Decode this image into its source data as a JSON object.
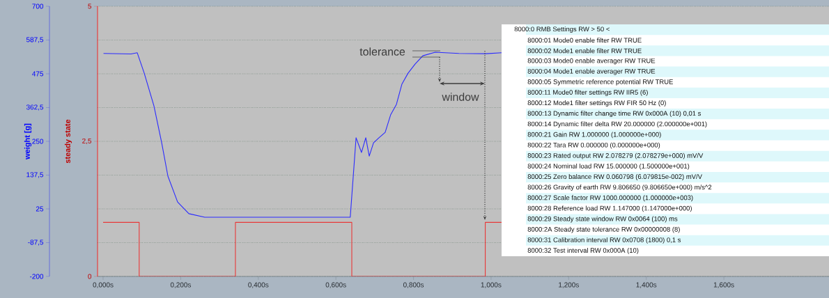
{
  "chart_data": {
    "type": "line",
    "ylabel": "weight [g]",
    "y2label": "steady state",
    "grid": "y",
    "xlim": [
      -0.0144,
      1.871
    ],
    "xticks": [
      {
        "value": 0,
        "label": "0,000s"
      },
      {
        "value": 0.2,
        "label": "0,200s"
      },
      {
        "value": 0.4,
        "label": "0,400s"
      },
      {
        "value": 0.6,
        "label": "0,600s"
      },
      {
        "value": 0.8,
        "label": "0,800s"
      },
      {
        "value": 1.0,
        "label": "1,000s"
      },
      {
        "value": 1.2,
        "label": "1,200s"
      },
      {
        "value": 1.4,
        "label": "1,400s"
      },
      {
        "value": 1.6,
        "label": "1,600s"
      }
    ],
    "ylim": [
      -200,
      700
    ],
    "yticks": [
      -200,
      {
        "value": -87.5,
        "label": "-87,5"
      },
      25,
      {
        "value": 137.5,
        "label": "137,5"
      },
      250,
      {
        "value": 362.5,
        "label": "362,5"
      },
      475,
      {
        "value": 587.5,
        "label": "587,5"
      },
      700
    ],
    "y2lim": [
      0,
      5
    ],
    "y2ticks": [
      0,
      {
        "value": 2.5,
        "label": "2,5"
      },
      5
    ],
    "series": [
      {
        "color": "#2a2aff",
        "x": [
          0.001,
          0.072,
          0.088,
          0.106,
          0.131,
          0.151,
          0.167,
          0.192,
          0.221,
          0.262,
          0.637,
          0.652,
          0.666,
          0.677,
          0.686,
          0.697,
          0.711,
          0.727,
          0.741,
          0.756,
          0.77,
          0.786,
          0.804,
          0.824,
          0.856,
          0.917,
          0.987,
          1.027
        ],
        "values": [
          543,
          541,
          545,
          477,
          368,
          245,
          134,
          48,
          9,
          -3,
          -3,
          262,
          213,
          262,
          201,
          245,
          262,
          280,
          338,
          373,
          440,
          477,
          507,
          535,
          547,
          543,
          542,
          545
        ]
      },
      {
        "type": "step",
        "axis": "y2",
        "color": "#e83838",
        "x": [
          0,
          0.093,
          0.341,
          0.641,
          0.985,
          1.027
        ],
        "values": [
          1,
          0,
          1,
          0,
          1,
          1
        ]
      }
    ],
    "annotations": [
      "tolerance",
      "window",
      "8000:0 RMB Settings RW > 50 <",
      "8000:01 Mode0 enable filter RW TRUE",
      "8000:02 Mode1 enable filter RW TRUE",
      "8000:03 Mode0 enable averager RW TRUE",
      "8000:04 Mode1 enable averager RW TRUE",
      "8000:05 Symmetric reference potential RW TRUE",
      "8000:11 Mode0 filter settings RW IIR5 (6)",
      "8000:12 Mode1 filter settings RW FIR 50 Hz (0)",
      "8000:13 Dynamic filter change time RW 0x000A (10) 0,01 s",
      "8000:14 Dynamic filter delta RW 20.000000 (2.000000e+001)",
      "8000:21 Gain RW 1.000000 (1.000000e+000)",
      "8000:22 Tara RW 0.000000 (0.000000e+000)",
      "8000:23 Rated output RW 2.078279 (2.078279e+000) mV/V",
      "8000:24 Nominal load RW 15.000000 (1.500000e+001)",
      "8000:25 Zero balance RW 0.060798 (6.079815e-002) mV/V",
      "8000:26 Gravity of earth RW 9.806650 (9.806650e+000) m/s^2",
      "8000:27 Scale factor RW 1000.000000 (1.000000e+003)",
      "8000:28 Reference load RW 1.147000 (1.147000e+000)",
      "8000:29 Steady state window RW 0x0064 (100) ms",
      "8000:2A Steady state tolerance RW 0x00000008 (8)",
      "8000:31 Calibration interval RW 0x0708 (1800) 0,1 s",
      "8000:32 Test interval RW 0x000A (10)"
    ]
  }
}
